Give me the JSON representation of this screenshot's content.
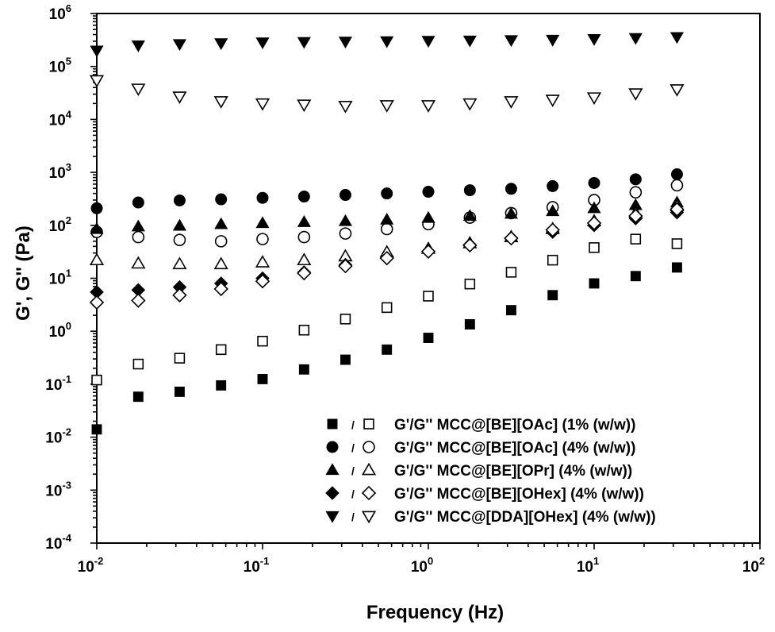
{
  "chart_data": {
    "type": "scatter",
    "xlabel": "Frequency (Hz)",
    "ylabel": "G', G'' (Pa)",
    "xscale": "log",
    "yscale": "log",
    "xlim": [
      0.01,
      100
    ],
    "ylim": [
      0.0001,
      1000000
    ],
    "x_ticks": [
      {
        "base": "10",
        "exp": "-2"
      },
      {
        "base": "10",
        "exp": "-1"
      },
      {
        "base": "10",
        "exp": "0"
      },
      {
        "base": "10",
        "exp": "1"
      },
      {
        "base": "10",
        "exp": "2"
      }
    ],
    "y_ticks": [
      {
        "base": "10",
        "exp": "-4"
      },
      {
        "base": "10",
        "exp": "-3"
      },
      {
        "base": "10",
        "exp": "-2"
      },
      {
        "base": "10",
        "exp": "-1"
      },
      {
        "base": "10",
        "exp": "0"
      },
      {
        "base": "10",
        "exp": "1"
      },
      {
        "base": "10",
        "exp": "2"
      },
      {
        "base": "10",
        "exp": "3"
      },
      {
        "base": "10",
        "exp": "4"
      },
      {
        "base": "10",
        "exp": "5"
      },
      {
        "base": "10",
        "exp": "6"
      }
    ],
    "x": [
      0.01,
      0.0178,
      0.0316,
      0.0562,
      0.1,
      0.178,
      0.316,
      0.562,
      1,
      1.78,
      3.16,
      5.62,
      10,
      17.8,
      31.6
    ],
    "grid": false,
    "legend_position": "bottom-right",
    "legend": [
      {
        "marker": "square",
        "separator": "/",
        "label": "G'/G''  MCC@[BE][OAc] (1% (w/w))"
      },
      {
        "marker": "circle",
        "separator": "/",
        "label": "G'/G''  MCC@[BE][OAc] (4% (w/w))"
      },
      {
        "marker": "triangle-up",
        "separator": "/",
        "label": "G'/G''  MCC@[BE][OPr] (4% (w/w))"
      },
      {
        "marker": "diamond",
        "separator": "/",
        "label": "G'/G''  MCC@[BE][OHex] (4% (w/w))"
      },
      {
        "marker": "triangle-down",
        "separator": "/",
        "label": "G'/G''  MCC@[DDA][OHex] (4% (w/w))"
      }
    ],
    "series": [
      {
        "marker": "square",
        "fill": "filled",
        "values": [
          0.014,
          0.058,
          0.072,
          0.095,
          0.125,
          0.19,
          0.29,
          0.45,
          0.75,
          1.35,
          2.5,
          4.8,
          8.0,
          11,
          16
        ]
      },
      {
        "marker": "square",
        "fill": "open",
        "values": [
          0.12,
          0.24,
          0.31,
          0.45,
          0.65,
          1.05,
          1.7,
          2.8,
          4.6,
          7.8,
          13,
          22,
          38,
          55,
          45
        ]
      },
      {
        "marker": "circle",
        "fill": "filled",
        "values": [
          210,
          270,
          295,
          310,
          330,
          350,
          375,
          400,
          430,
          460,
          490,
          550,
          630,
          740,
          920
        ]
      },
      {
        "marker": "circle",
        "fill": "open",
        "values": [
          75,
          60,
          53,
          50,
          55,
          60,
          70,
          85,
          105,
          140,
          170,
          220,
          300,
          420,
          570
        ]
      },
      {
        "marker": "triangle-up",
        "fill": "filled",
        "values": [
          85,
          95,
          98,
          105,
          110,
          115,
          120,
          128,
          138,
          150,
          165,
          185,
          210,
          240,
          270
        ]
      },
      {
        "marker": "triangle-up",
        "fill": "open",
        "values": [
          22,
          19,
          18.5,
          18.5,
          20,
          22,
          26,
          31,
          36,
          46,
          60,
          85,
          120,
          170,
          230
        ]
      },
      {
        "marker": "diamond",
        "fill": "filled",
        "values": [
          5.5,
          6.0,
          6.8,
          8.0,
          10,
          13,
          18,
          24,
          32,
          43,
          58,
          75,
          100,
          135,
          175
        ]
      },
      {
        "marker": "diamond",
        "fill": "open",
        "values": [
          3.5,
          3.8,
          4.8,
          6.3,
          8.8,
          12.5,
          17,
          24,
          32,
          42,
          57,
          82,
          110,
          150,
          200
        ]
      },
      {
        "marker": "triangle-down",
        "fill": "filled",
        "values": [
          200000,
          250000,
          265000,
          275000,
          285000,
          290000,
          295000,
          300000,
          305000,
          310000,
          315000,
          320000,
          330000,
          345000,
          360000
        ]
      },
      {
        "marker": "triangle-down",
        "fill": "open",
        "values": [
          55000,
          38000,
          27000,
          22000,
          20000,
          19000,
          18000,
          18500,
          18500,
          20000,
          22000,
          23500,
          26000,
          31000,
          37000
        ]
      }
    ]
  }
}
